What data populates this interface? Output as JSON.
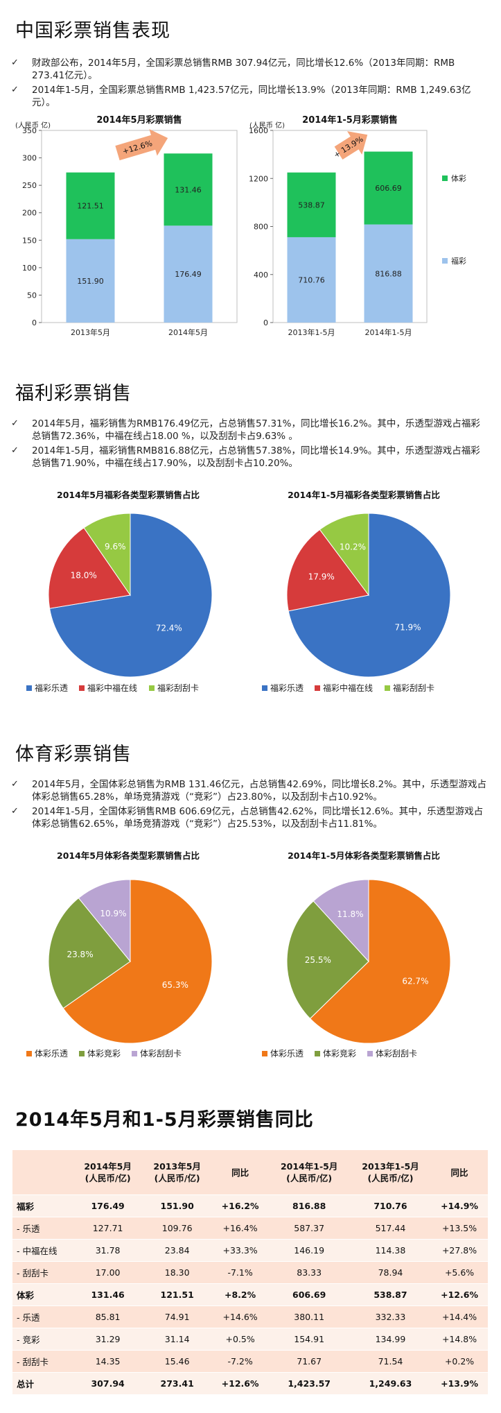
{
  "section1": {
    "title": "中国彩票销售表现",
    "bullets": [
      "财政部公布，2014年5月，全国彩票总销售RMB 307.94亿元，同比增长12.6%（2013年同期：RMB 273.41亿元）。",
      "2014年1-5月，全国彩票总销售RMB 1,423.57亿元，同比增长13.9%（2013年同期：RMB 1,249.63亿元）。"
    ]
  },
  "section2": {
    "title": "福利彩票销售",
    "bullets": [
      "2014年5月，福彩销售为RMB176.49亿元，占总销售57.31%，同比增长16.2%。其中，乐透型游戏占福彩总销售72.36%，中福在线占18.00 %，以及刮刮卡占9.63% 。",
      "2014年1-5月，福彩销售RMB816.88亿元，占总销售57.38%，同比增长14.9%。其中，乐透型游戏占福彩总销售71.90%，中福在线占17.90%，以及刮刮卡占10.20%。"
    ]
  },
  "section3": {
    "title": "体育彩票销售",
    "bullets": [
      "2014年5月，全国体彩总销售为RMB 131.46亿元，占总销售42.69%，同比增长8.2%。其中，乐透型游戏占体彩总销售65.28%，单场竞猜游戏（“竞彩”）占23.80%，以及刮刮卡占10.92%。",
      "2014年1-5月，全国体彩销售RMB 606.69亿元，占总销售42.62%，同比增长12.6%。其中，乐透型游戏占体彩总销售62.65%，单场竞猜游戏（“竞彩”）占25.53%，以及刮刮卡占11.81%。"
    ]
  },
  "section4": {
    "title": "2014年5月和1-5月彩票销售同比"
  },
  "chart_data": [
    {
      "type": "bar",
      "title": "2014年5月彩票销售",
      "ylabel": "(人民币 亿)",
      "categories": [
        "2013年5月",
        "2014年5月"
      ],
      "ylim": [
        0,
        350
      ],
      "yticks": [
        0,
        50,
        100,
        150,
        200,
        250,
        300,
        350
      ],
      "stacked": true,
      "series": [
        {
          "name": "福彩",
          "values": [
            151.9,
            176.49
          ],
          "labels": [
            "151.90",
            "176.49"
          ],
          "color": "#9dc3ec"
        },
        {
          "name": "体彩",
          "values": [
            121.51,
            131.46
          ],
          "labels": [
            "121.51",
            "131.46"
          ],
          "color": "#1fc15b"
        }
      ],
      "annotation": "+12.6%"
    },
    {
      "type": "bar",
      "title": "2014年1-5月彩票销售",
      "ylabel": "(人民币 亿)",
      "categories": [
        "2013年1-5月",
        "2014年1-5月"
      ],
      "ylim": [
        0,
        1600
      ],
      "yticks": [
        0,
        400,
        800,
        1200,
        1600
      ],
      "stacked": true,
      "series": [
        {
          "name": "福彩",
          "values": [
            710.76,
            816.88
          ],
          "labels": [
            "710.76",
            "816.88"
          ],
          "color": "#9dc3ec"
        },
        {
          "name": "体彩",
          "values": [
            538.87,
            606.69
          ],
          "labels": [
            "538.87",
            "606.69"
          ],
          "color": "#1fc15b"
        }
      ],
      "annotation": "+ 13.9%",
      "legend": [
        "体彩",
        "福彩"
      ]
    },
    {
      "type": "pie",
      "title": "2014年5月福彩各类型彩票销售占比",
      "slices": [
        {
          "name": "福彩乐透",
          "value": 72.4,
          "label": "72.4%",
          "color": "#3a73c4"
        },
        {
          "name": "福彩中福在线",
          "value": 18.0,
          "label": "18.0%",
          "color": "#d63b3b"
        },
        {
          "name": "福彩刮刮卡",
          "value": 9.6,
          "label": "9.6%",
          "color": "#96c943"
        }
      ]
    },
    {
      "type": "pie",
      "title": "2014年1-5月福彩各类型彩票销售占比",
      "slices": [
        {
          "name": "福彩乐透",
          "value": 71.9,
          "label": "71.9%",
          "color": "#3a73c4"
        },
        {
          "name": "福彩中福在线",
          "value": 17.9,
          "label": "17.9%",
          "color": "#d63b3b"
        },
        {
          "name": "福彩刮刮卡",
          "value": 10.2,
          "label": "10.2%",
          "color": "#96c943"
        }
      ]
    },
    {
      "type": "pie",
      "title": "2014年5月体彩各类型彩票销售占比",
      "slices": [
        {
          "name": "体彩乐透",
          "value": 65.3,
          "label": "65.3%",
          "color": "#f07818"
        },
        {
          "name": "体彩竞彩",
          "value": 23.8,
          "label": "23.8%",
          "color": "#7f9e3e"
        },
        {
          "name": "体彩刮刮卡",
          "value": 10.9,
          "label": "10.9%",
          "color": "#b9a4d2"
        }
      ]
    },
    {
      "type": "pie",
      "title": "2014年1-5月体彩各类型彩票销售占比",
      "slices": [
        {
          "name": "体彩乐透",
          "value": 62.7,
          "label": "62.7%",
          "color": "#f07818"
        },
        {
          "name": "体彩竞彩",
          "value": 25.5,
          "label": "25.5%",
          "color": "#7f9e3e"
        },
        {
          "name": "体彩刮刮卡",
          "value": 11.8,
          "label": "11.8%",
          "color": "#b9a4d2"
        }
      ]
    },
    {
      "type": "table",
      "headers": [
        "",
        "2014年5月\n(人民币/亿)",
        "2013年5月\n(人民币/亿)",
        "同比",
        "2014年1-5月\n(人民币/亿)",
        "2013年1-5月\n(人民币/亿)",
        "同比"
      ],
      "rows": [
        {
          "cells": [
            "福彩",
            "176.49",
            "151.90",
            "+16.2%",
            "816.88",
            "710.76",
            "+14.9%"
          ],
          "bold": true
        },
        {
          "cells": [
            "- 乐透",
            "127.71",
            "109.76",
            "+16.4%",
            "587.37",
            "517.44",
            "+13.5%"
          ],
          "bold": false
        },
        {
          "cells": [
            "- 中福在线",
            "31.78",
            "23.84",
            "+33.3%",
            "146.19",
            "114.38",
            "+27.8%"
          ],
          "bold": false
        },
        {
          "cells": [
            "- 刮刮卡",
            "17.00",
            "18.30",
            "-7.1%",
            "83.33",
            "78.94",
            "+5.6%"
          ],
          "bold": false
        },
        {
          "cells": [
            "体彩",
            "131.46",
            "121.51",
            "+8.2%",
            "606.69",
            "538.87",
            "+12.6%"
          ],
          "bold": true
        },
        {
          "cells": [
            "- 乐透",
            "85.81",
            "74.91",
            "+14.6%",
            "380.11",
            "332.33",
            "+14.4%"
          ],
          "bold": false
        },
        {
          "cells": [
            "- 竞彩",
            "31.29",
            "31.14",
            "+0.5%",
            "154.91",
            "134.99",
            "+14.8%"
          ],
          "bold": false
        },
        {
          "cells": [
            "- 刮刮卡",
            "14.35",
            "15.46",
            "-7.2%",
            "71.67",
            "71.54",
            "+0.2%"
          ],
          "bold": false
        },
        {
          "cells": [
            "总计",
            "307.94",
            "273.41",
            "+12.6%",
            "1,423.57",
            "1,249.63",
            "+13.9%"
          ],
          "bold": true
        }
      ]
    }
  ]
}
